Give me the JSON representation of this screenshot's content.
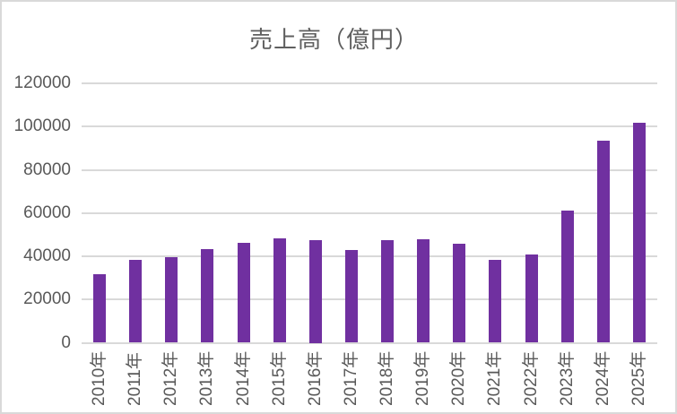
{
  "chart": {
    "title": "売上高（億円）",
    "colors": {
      "bar": "#7030a0",
      "gridline": "#d9d9d9",
      "border": "#d9d9d9",
      "title_text": "#5f5f5f",
      "axis_text": "#595959",
      "background": "#ffffff"
    }
  },
  "chart_data": {
    "type": "bar",
    "title": "売上高（億円）",
    "categories": [
      "2010年",
      "2011年",
      "2012年",
      "2013年",
      "2014年",
      "2015年",
      "2016年",
      "2017年",
      "2018年",
      "2019年",
      "2020年",
      "2021年",
      "2022年",
      "2023年",
      "2024年",
      "2025年"
    ],
    "values": [
      31800,
      38400,
      39600,
      43400,
      46100,
      48200,
      47500,
      43000,
      47400,
      47800,
      45700,
      38500,
      41000,
      61300,
      93600,
      101900
    ],
    "xlabel": "",
    "ylabel": "",
    "ylim": [
      0,
      120000
    ],
    "yticks": [
      0,
      20000,
      40000,
      60000,
      80000,
      100000,
      120000
    ],
    "ytick_labels": [
      "0",
      "20000",
      "40000",
      "60000",
      "80000",
      "100000",
      "120000"
    ],
    "x_tick_rotation": -90,
    "grid": true,
    "legend": false,
    "bar_color": "#7030a0"
  }
}
